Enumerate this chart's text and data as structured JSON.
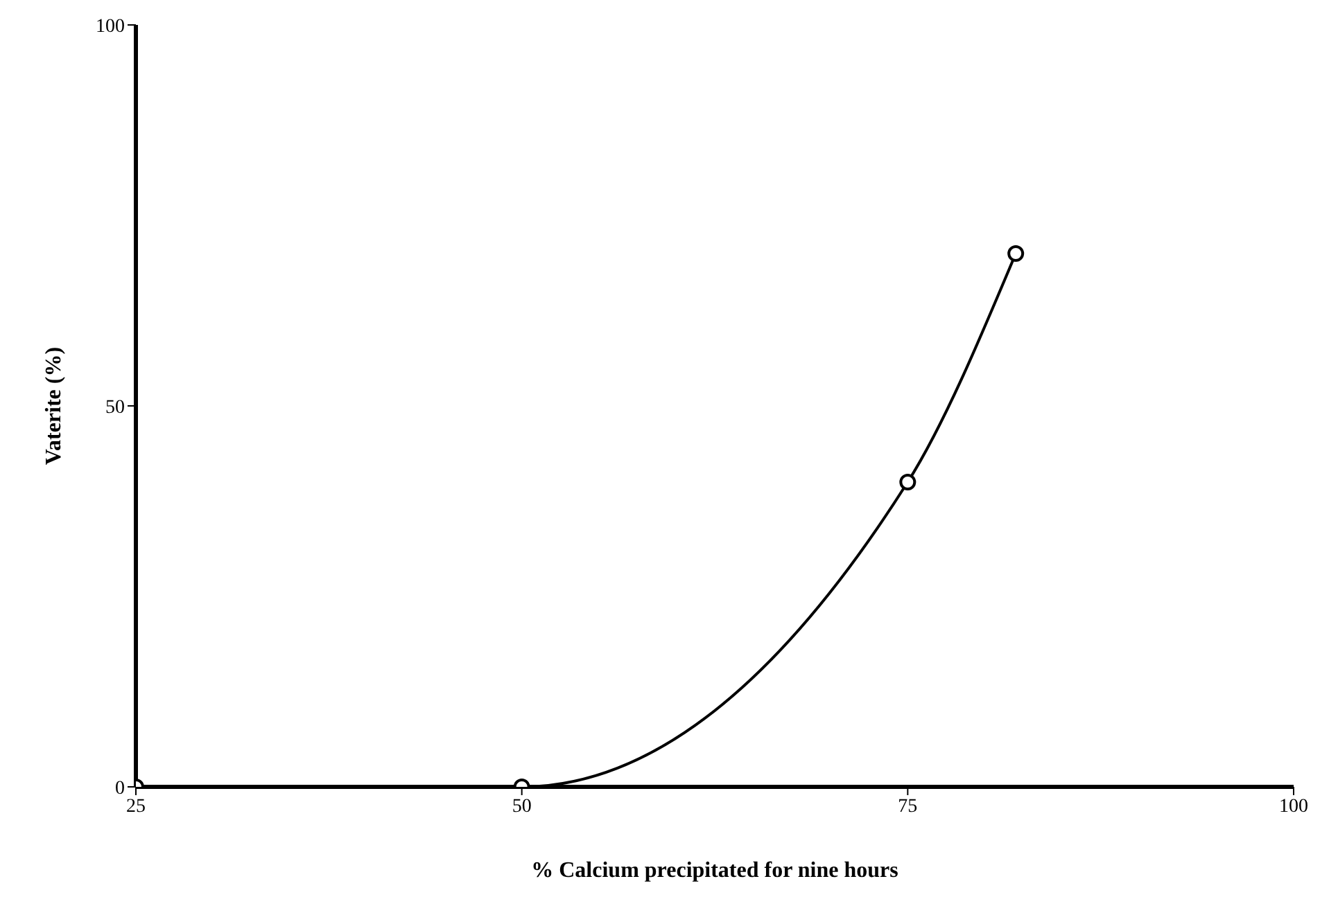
{
  "chart_data": {
    "type": "line",
    "xlabel": "%  Calcium precipitated for nine hours",
    "ylabel": "Vaterite (%)",
    "x": [
      25,
      50,
      75,
      82
    ],
    "series": [
      {
        "color": "#000000",
        "values": [
          0,
          0,
          40,
          70
        ]
      }
    ],
    "xlim": [
      25,
      100
    ],
    "ylim": [
      0,
      100
    ],
    "xticks": [
      25,
      50,
      75,
      100
    ],
    "yticks": [
      0,
      50,
      100
    ],
    "marker": "circle",
    "line_style": "solid",
    "grid": false,
    "legend": false
  }
}
